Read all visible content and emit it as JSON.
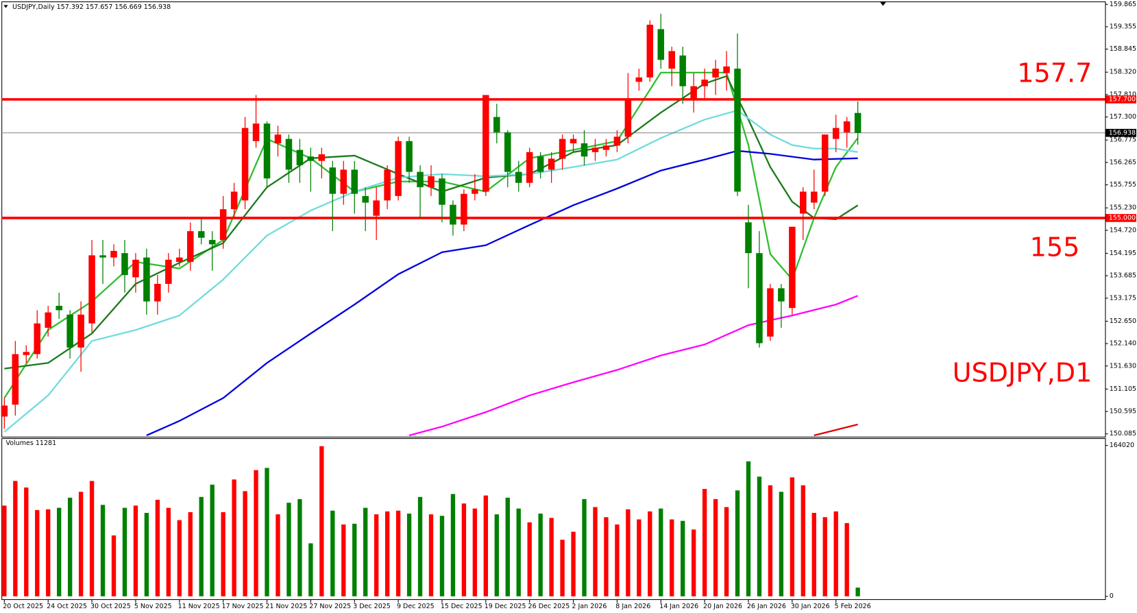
{
  "chart_data": [
    {
      "type": "candlestick",
      "title": "USDJPY,Daily 157.392 157.657 156.669 156.938",
      "up_color": "#ff0000",
      "down_color": "#008000",
      "open": [
        150.48,
        150.75,
        151.88,
        151.9,
        152.5,
        153.0,
        152.8,
        152.05,
        152.6,
        154.15,
        154.1,
        154.2,
        153.65,
        154.1,
        153.1,
        153.5,
        154.0,
        154.0,
        154.7,
        154.5,
        154.5,
        155.2,
        155.4,
        156.75,
        157.15,
        156.7,
        156.8,
        156.55,
        156.4,
        156.3,
        156.15,
        155.55,
        156.1,
        155.5,
        155.05,
        155.4,
        155.5,
        156.75,
        156.05,
        155.7,
        155.9,
        155.3,
        154.85,
        155.55,
        155.6,
        157.3,
        156.95,
        156.05,
        155.8,
        156.4,
        156.1,
        156.35,
        156.7,
        156.7,
        156.5,
        156.55,
        156.65,
        156.85,
        158.1,
        158.2,
        159.3,
        158.4,
        158.7,
        157.7,
        158.0,
        158.2,
        158.3,
        158.4,
        154.9,
        154.2,
        152.3,
        153.4,
        152.95,
        155.1,
        155.35,
        155.6,
        156.8,
        156.95,
        157.392
      ],
      "high": [
        150.9,
        152.2,
        152.1,
        152.9,
        153.0,
        153.3,
        152.9,
        153.1,
        154.5,
        154.5,
        154.4,
        154.5,
        154.2,
        154.3,
        153.7,
        154.2,
        154.3,
        154.9,
        155.0,
        154.7,
        155.5,
        155.8,
        157.3,
        157.8,
        157.2,
        157.1,
        156.9,
        156.8,
        156.6,
        156.6,
        156.3,
        156.3,
        156.3,
        155.7,
        155.7,
        156.2,
        156.85,
        156.85,
        156.2,
        156.2,
        156.0,
        155.4,
        155.65,
        156.0,
        157.8,
        157.6,
        157.0,
        156.3,
        156.6,
        156.5,
        156.5,
        156.9,
        156.9,
        157.0,
        156.8,
        156.8,
        157.0,
        158.3,
        158.4,
        159.5,
        159.65,
        158.9,
        158.9,
        158.3,
        158.4,
        158.6,
        158.8,
        159.2,
        155.3,
        154.7,
        153.5,
        153.5,
        154.8,
        155.7,
        156.1,
        156.9,
        157.35,
        157.3,
        157.657
      ],
      "low": [
        150.2,
        150.5,
        151.7,
        151.8,
        152.3,
        152.7,
        151.8,
        151.5,
        152.4,
        153.5,
        153.9,
        153.3,
        153.3,
        152.8,
        152.8,
        153.3,
        153.9,
        153.8,
        154.4,
        153.8,
        154.3,
        155.0,
        155.2,
        156.6,
        155.7,
        156.4,
        155.8,
        155.8,
        155.6,
        155.9,
        154.7,
        155.3,
        155.1,
        154.7,
        154.5,
        155.2,
        155.4,
        155.8,
        155.0,
        155.5,
        154.9,
        154.6,
        154.7,
        155.4,
        155.5,
        156.7,
        155.7,
        155.6,
        155.7,
        155.9,
        155.8,
        156.1,
        156.5,
        156.2,
        156.3,
        156.4,
        156.5,
        156.7,
        157.9,
        158.1,
        158.4,
        158.0,
        157.6,
        157.4,
        157.7,
        157.8,
        157.9,
        155.5,
        153.4,
        152.05,
        152.2,
        152.5,
        152.8,
        154.5,
        155.2,
        155.5,
        156.5,
        156.6,
        156.669
      ],
      "close": [
        150.73,
        151.9,
        151.95,
        152.6,
        152.85,
        152.9,
        152.05,
        152.8,
        154.15,
        154.1,
        154.25,
        153.7,
        154.05,
        153.1,
        153.5,
        154.05,
        154.1,
        154.7,
        154.55,
        154.4,
        155.2,
        155.6,
        157.05,
        157.15,
        155.9,
        156.9,
        156.1,
        156.2,
        156.3,
        156.45,
        155.55,
        156.1,
        155.55,
        155.35,
        155.4,
        156.1,
        156.75,
        156.05,
        155.7,
        155.95,
        155.3,
        154.85,
        155.55,
        155.65,
        157.8,
        156.95,
        156.05,
        155.8,
        156.5,
        156.05,
        156.35,
        156.8,
        156.8,
        156.4,
        156.6,
        156.65,
        156.85,
        157.7,
        158.2,
        159.4,
        158.6,
        158.8,
        158.0,
        158.0,
        158.15,
        158.4,
        158.45,
        155.6,
        154.2,
        152.15,
        153.4,
        153.1,
        154.8,
        155.6,
        155.6,
        156.9,
        157.05,
        157.2,
        156.938
      ],
      "series": [
        {
          "color": "#2fbf2f",
          "x": [
            0,
            4,
            8,
            12,
            16,
            20,
            24,
            28,
            32,
            36,
            40,
            44,
            48,
            52,
            56,
            60,
            64,
            66,
            68,
            70,
            72,
            74,
            76,
            78
          ],
          "values": [
            150.9,
            152.45,
            153.1,
            154.0,
            153.85,
            154.5,
            156.8,
            156.36,
            155.6,
            155.83,
            155.83,
            155.6,
            156.36,
            156.55,
            156.75,
            158.31,
            158.31,
            158.31,
            156.66,
            154.18,
            153.6,
            155.0,
            156.16,
            156.82
          ]
        },
        {
          "color": "#1a7a1a",
          "x": [
            0,
            4,
            8,
            12,
            16,
            20,
            24,
            28,
            32,
            36,
            40,
            44,
            48,
            52,
            56,
            60,
            64,
            66,
            68,
            70,
            72,
            74,
            76,
            78
          ],
          "values": [
            151.57,
            151.7,
            152.37,
            153.5,
            153.98,
            154.43,
            155.7,
            156.36,
            156.42,
            156.0,
            155.6,
            155.92,
            156.0,
            156.5,
            156.66,
            157.4,
            158.06,
            158.23,
            157.24,
            156.16,
            155.37,
            155.0,
            154.97,
            155.29
          ]
        },
        {
          "color": "#70dcdc",
          "x": [
            0,
            4,
            8,
            12,
            16,
            20,
            24,
            28,
            32,
            36,
            40,
            44,
            48,
            52,
            56,
            60,
            64,
            67,
            70,
            72,
            74,
            76,
            78
          ],
          "values": [
            150.13,
            150.96,
            152.2,
            152.45,
            152.78,
            153.6,
            154.6,
            155.17,
            155.6,
            155.92,
            156.0,
            155.95,
            156.0,
            156.16,
            156.33,
            156.82,
            157.24,
            157.45,
            156.9,
            156.66,
            156.58,
            156.58,
            156.5
          ]
        },
        {
          "color": "#0000e0",
          "x": [
            13,
            16,
            20,
            24,
            28,
            32,
            36,
            40,
            44,
            48,
            52,
            56,
            60,
            64,
            67,
            70,
            74,
            78
          ],
          "values": [
            150.05,
            150.38,
            150.9,
            151.7,
            152.37,
            153.03,
            153.72,
            154.22,
            154.38,
            154.84,
            155.29,
            155.67,
            156.08,
            156.33,
            156.53,
            156.46,
            156.33,
            156.36
          ]
        },
        {
          "color": "#ff00ff",
          "x": [
            37,
            40,
            44,
            48,
            52,
            56,
            60,
            64,
            68,
            72,
            76,
            78
          ],
          "values": [
            150.05,
            150.25,
            150.58,
            150.96,
            151.26,
            151.54,
            151.87,
            152.12,
            152.56,
            152.78,
            153.03,
            153.23
          ]
        },
        {
          "color": "#e00000",
          "x": [
            74,
            78
          ],
          "values": [
            150.05,
            150.3
          ]
        }
      ],
      "levels": [
        {
          "value": 157.7,
          "label": "157.700",
          "color": "#ff0000"
        },
        {
          "value": 155,
          "label": "155.000",
          "color": "#ff0000"
        },
        {
          "value": 156.938,
          "label": "156.938",
          "color": "#000000"
        }
      ],
      "annotations": [
        "157.7",
        "155",
        "USDJPY,D1"
      ],
      "annotation_color": "#ff0000",
      "ylim": [
        150.02,
        159.93
      ],
      "yticks": [
        159.865,
        159.355,
        158.845,
        {
          "value": 158.32,
          "label": "158.320"
        },
        {
          "value": 157.81,
          "label": "157.810"
        },
        {
          "value": 157.3,
          "label": "157.300"
        },
        156.775,
        156.265,
        155.755,
        {
          "value": 155.23,
          "label": "155.230"
        },
        {
          "value": 154.72,
          "label": "154.720"
        },
        154.195,
        153.685,
        153.175,
        {
          "value": 152.65,
          "label": "152.650"
        },
        {
          "value": 152.14,
          "label": "152.140"
        },
        {
          "value": 151.63,
          "label": "151.630"
        },
        151.105,
        150.595,
        150.085
      ]
    },
    {
      "type": "bar",
      "title": "Volumes 11281",
      "categories": [
        "20 Oct 2025",
        null,
        null,
        null,
        "24 Oct 2025",
        null,
        null,
        null,
        "30 Oct 2025",
        null,
        null,
        null,
        "5 Nov 2025",
        null,
        null,
        null,
        "11 Nov 2025",
        null,
        null,
        null,
        "17 Nov 2025",
        null,
        null,
        null,
        "21 Nov 2025",
        null,
        null,
        null,
        "27 Nov 2025",
        null,
        null,
        null,
        "3 Dec 2025",
        null,
        null,
        null,
        "9 Dec 2025",
        null,
        null,
        null,
        "15 Dec 2025",
        null,
        null,
        null,
        "19 Dec 2025",
        null,
        null,
        null,
        "26 Dec 2025",
        null,
        null,
        null,
        "2 Jan 2026",
        null,
        null,
        null,
        "8 Jan 2026",
        null,
        null,
        null,
        "14 Jan 2026",
        null,
        null,
        null,
        "20 Jan 2026",
        null,
        null,
        null,
        "26 Jan 2026",
        null,
        null,
        null,
        "30 Jan 2026",
        null,
        null,
        null,
        "5 Feb 2026",
        null,
        null
      ],
      "values": [
        98600,
        125400,
        118300,
        93800,
        94600,
        96200,
        107200,
        113600,
        125400,
        99400,
        66200,
        96200,
        98600,
        90700,
        104900,
        96200,
        82800,
        91500,
        108000,
        121400,
        91500,
        127000,
        114300,
        137200,
        139600,
        89100,
        101700,
        105700,
        57600,
        163200,
        93100,
        78100,
        78900,
        96200,
        89100,
        92300,
        93100,
        89900,
        108000,
        89100,
        87500,
        111200,
        100900,
        95400,
        109600,
        89100,
        107200,
        95400,
        80400,
        89900,
        85200,
        61500,
        70200,
        105700,
        97000,
        86000,
        78100,
        94600,
        83600,
        92300,
        95400,
        83600,
        82000,
        72600,
        116700,
        105700,
        97000,
        115100,
        146700,
        130100,
        120700,
        113600,
        129300,
        120700,
        90700,
        86000,
        92300,
        79600,
        9500
      ],
      "ylim": [
        0,
        164020
      ],
      "yticks": [
        164020,
        0
      ]
    }
  ]
}
